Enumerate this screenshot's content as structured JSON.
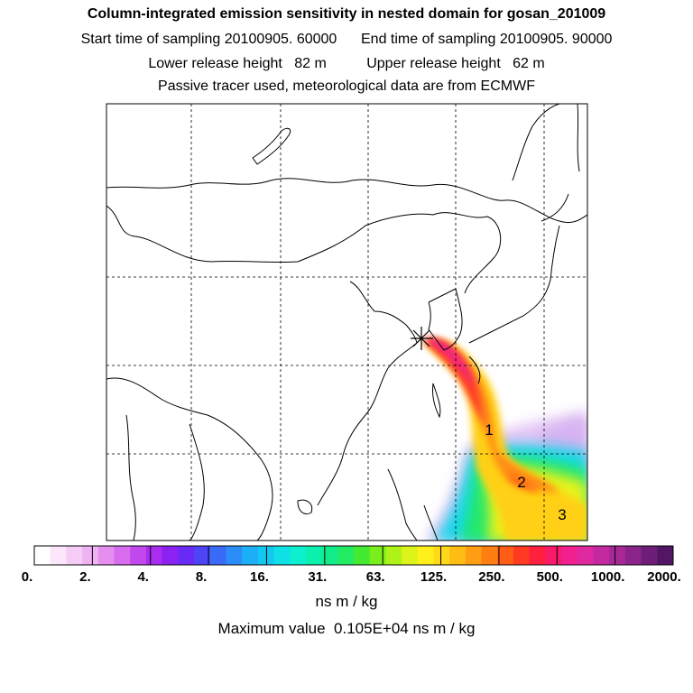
{
  "header": {
    "title": "Column-integrated emission sensitivity in nested domain for gosan_201009",
    "sampling": "Start time of sampling 20100905. 60000      End time of sampling 20100905. 90000",
    "release": "Lower release height   82 m          Upper release height   62 m",
    "tracer": "Passive tracer used, meteorological data are from ECMWF"
  },
  "map": {
    "station_marker": "star-marker",
    "labels": [
      "1",
      "2",
      "3"
    ]
  },
  "colorbar": {
    "ticks": [
      "0.",
      "2.",
      "4.",
      "8.",
      "16.",
      "31.",
      "63.",
      "125.",
      "250.",
      "500.",
      "1000.",
      "2000."
    ],
    "colors": [
      "#ffffff",
      "#fbe6fb",
      "#f5ccf5",
      "#efb3f1",
      "#e58ef0",
      "#d76cef",
      "#c248ee",
      "#a92cf0",
      "#8a22f2",
      "#6a2af5",
      "#4d44f7",
      "#3a6af8",
      "#2a8df8",
      "#1aaff6",
      "#12c8f0",
      "#0ee0e6",
      "#0cf0d0",
      "#0cf0ae",
      "#10ec8a",
      "#22ea62",
      "#44ea32",
      "#7aee1c",
      "#aef218",
      "#dcf41a",
      "#fff01c",
      "#ffd818",
      "#ffbc14",
      "#ff9e12",
      "#ff7e12",
      "#ff5c16",
      "#ff3a22",
      "#ff2040",
      "#fa1a6c",
      "#f0208e",
      "#e028a0",
      "#c42aa0",
      "#a82896",
      "#8a248a",
      "#6e1e78",
      "#521664"
    ],
    "units": "ns m / kg",
    "maximum": "Maximum value  0.105E+04 ns m / kg"
  }
}
